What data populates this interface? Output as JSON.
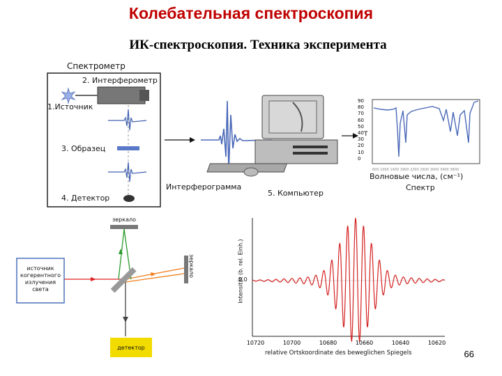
{
  "header": {
    "title": "Колебательная спектроскопия",
    "subtitle": "ИК-спектроскопия. Техника эксперимента"
  },
  "spectrometer_diagram": {
    "caption": "Спектрометр",
    "interferometer": "2. Интерферометр",
    "source": "1.Источник",
    "sample": "3. Образец",
    "detector": "4. Детектор",
    "interferogram": "Интерферограмма",
    "computer": "5. Компьютер",
    "spectrum_axis": "Волновые числа, (см⁻¹)",
    "spectrum_label": "Спектр",
    "spectrum_y_ticks": [
      "90",
      "80",
      "70",
      "60",
      "50",
      "40",
      "30",
      "20",
      "10",
      "0"
    ],
    "t_label": "Т"
  },
  "michelson_diagram": {
    "mirror_top": "зеркало",
    "mirror_right": "зеркало",
    "source_box": "источник\nкогерентного\nизлучения\nсвета",
    "detector_box": "детектор",
    "colors": {
      "beam_red": "#e02020",
      "beam_green": "#2a9a2a",
      "beam_orange": "#f08020",
      "beam_dark": "#444444",
      "detector_fill": "#f2dc00"
    }
  },
  "interferogram_plot": {
    "ylabel": "Intensität (b. rel. Einh.)",
    "xlabel": "relative Ortskoordinate des beweglichen Spiegels",
    "y_tick": "0.0",
    "x_ticks": [
      "10720",
      "10700",
      "10680",
      "10660",
      "10640",
      "10620"
    ],
    "color": "#d42020"
  },
  "footer": {
    "page_number": "66"
  }
}
